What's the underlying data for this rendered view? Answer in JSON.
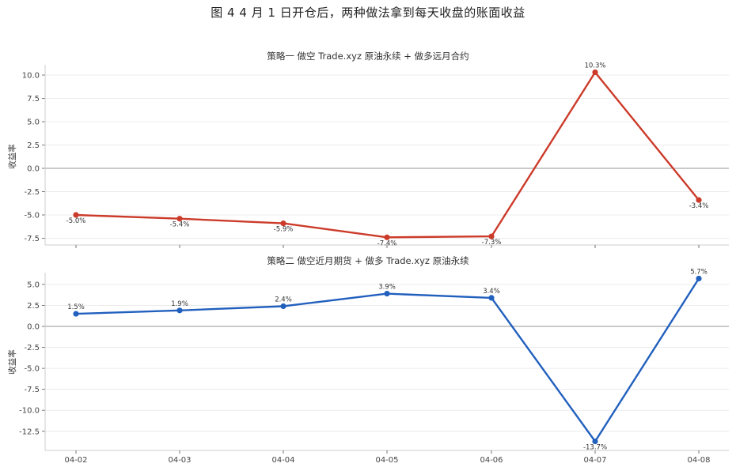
{
  "figure": {
    "title": "图 4  4 月 1 日开仓后，两种做法拿到每天收盘的账面收益"
  },
  "colors": {
    "strategy1": "#cc3b2a",
    "strategy2": "#2260be",
    "grid": "#ececec",
    "zero_line": "#aaaaaa",
    "axis": "#cccccc"
  },
  "chart_data": [
    {
      "type": "line",
      "title": "策略一  做空 Trade.xyz 原油永续 + 做多远月合约",
      "xlabel": "",
      "ylabel": "收益率",
      "categories": [
        "04-02",
        "04-03",
        "04-04",
        "04-05",
        "04-06",
        "04-07",
        "04-08"
      ],
      "values": [
        -5.0,
        -5.4,
        -5.9,
        -7.4,
        -7.3,
        10.3,
        -3.4
      ],
      "data_labels": [
        "-5.0%",
        "-5.4%",
        "-5.9%",
        "-7.4%",
        "-7.3%",
        "10.3%",
        "-3.4%"
      ],
      "yticks": [
        -7.5,
        -5.0,
        -2.5,
        0.0,
        2.5,
        5.0,
        7.5,
        10.0
      ],
      "ytick_labels": [
        "-7.5",
        "-5.0",
        "-2.5",
        "0.0",
        "2.5",
        "5.0",
        "7.5",
        "10.0"
      ],
      "ylim": [
        -8.2,
        10.9
      ],
      "grid": true,
      "zero_line": true,
      "color": "#cc3b2a"
    },
    {
      "type": "line",
      "title": "策略二  做空近月期货 + 做多 Trade.xyz 原油永续",
      "xlabel": "",
      "ylabel": "收益率",
      "categories": [
        "04-02",
        "04-03",
        "04-04",
        "04-05",
        "04-06",
        "04-07",
        "04-08"
      ],
      "values": [
        1.5,
        1.9,
        2.4,
        3.9,
        3.4,
        -13.7,
        5.7
      ],
      "data_labels": [
        "1.5%",
        "1.9%",
        "2.4%",
        "3.9%",
        "3.4%",
        "-13.7%",
        "5.7%"
      ],
      "yticks": [
        -12.5,
        -10.0,
        -7.5,
        -5.0,
        -2.5,
        0.0,
        2.5,
        5.0
      ],
      "ytick_labels": [
        "-12.5",
        "-10.0",
        "-7.5",
        "-5.0",
        "-2.5",
        "0.0",
        "2.5",
        "5.0"
      ],
      "ylim": [
        -14.8,
        6.6
      ],
      "grid": true,
      "zero_line": true,
      "color": "#2260be"
    }
  ]
}
